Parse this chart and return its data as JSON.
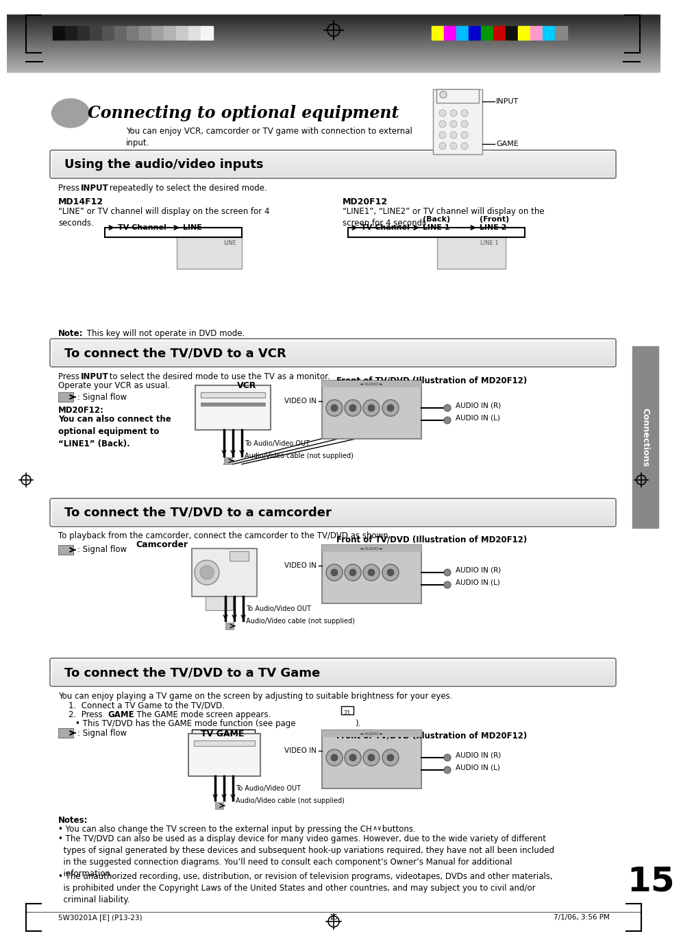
{
  "page_bg": "#ffffff",
  "title_italic": "Connecting to optional equipment",
  "subtitle": "You can enjoy VCR, camcorder or TV game with connection to external\ninput.",
  "section1_title": "Using the audio/video inputs",
  "section1_body1": "Press ",
  "section1_body1b": "INPUT",
  "section1_body1c": " repeatedly to select the desired mode.",
  "md14f12_title": "MD14F12",
  "md14f12_body": "“LINE” or TV channel will display on the screen for 4\nseconds.",
  "md20f12_title": "MD20F12",
  "md20f12_body": "“LINE1”, “LINE2” or TV channel will display on the\nscreen for 4 seconds.",
  "note_text": " This key will not operate in DVD mode.",
  "vcr_section_title": "To connect the TV/DVD to a VCR",
  "vcr_body1a": "Press ",
  "vcr_body1b": "INPUT",
  "vcr_body1c": " to select the desired mode to use the TV as a monitor.",
  "vcr_body2": "Operate your VCR as usual.",
  "vcr_label": "VCR",
  "front_label1": "Front of TV/DVD (Illustration of MD20F12)",
  "signal_flow": ": Signal flow",
  "md20f12_note_title": "MD20F12:",
  "md20f12_note_body": "You can also connect the\noptional equipment to\n“LINE1” (Back).",
  "audio_video_cable": "Audio/Video cable (not supplied)",
  "to_audio_video_out": "To Audio/Video OUT",
  "video_in": "VIDEO IN",
  "audio_in_r": "AUDIO IN (R)",
  "audio_in_l": "AUDIO IN (L)",
  "cam_section_title": "To connect the TV/DVD to a camcorder",
  "cam_body": "To playback from the camcorder, connect the camcorder to the TV/DVD as shown.",
  "cam_label": "Camcorder",
  "front_label2": "Front of TV/DVD (Illustration of MD20F12)",
  "tvgame_section_title": "To connect the TV/DVD to a TV Game",
  "tvgame_body1": "You can enjoy playing a TV game on the screen by adjusting to suitable brightness for your eyes.",
  "tvgame_body2": "1.  Connect a TV Game to the TV/DVD.",
  "tvgame_body3a": "2.  Press ",
  "tvgame_body3b": "GAME",
  "tvgame_body3c": ". The GAME mode screen appears.",
  "tvgame_body4": "  • This TV/DVD has the GAME mode function (see page      ).",
  "tvgame_label": "TV GAME",
  "front_label3": "Front of TV/DVD (Illustration of MD20F12)",
  "notes_title": "Notes:",
  "notes_body1a": "• You can also change the TV screen to the external input by pressing the CH ",
  "notes_body1b": "       buttons.",
  "notes_body2": "• The TV/DVD can also be used as a display device for many video games. However, due to the wide variety of different\n  types of signal generated by these devices and subsequent hook-up variations required, they have not all been included\n  in the suggested connection diagrams. You’ll need to consult each component’s Owner’s Manual for additional\n  information.",
  "notes_body3": "• The unauthorized recording, use, distribution, or revision of television programs, videotapes, DVDs and other materials,\n  is prohibited under the Copyright Laws of the United States and other countries, and may subject you to civil and/or\n  criminal liability.",
  "page_number": "15",
  "connections_sidebar": "Connections",
  "footer_left": "5W30201A [E] (P13-23)",
  "footer_center": "15",
  "footer_right": "7/1/06, 3:56 PM",
  "tv_channel_label": "TV Channel",
  "line_label": "LINE",
  "line1_label": "LINE 1",
  "line1_sub": "(Back)",
  "line2_label": "LINE 2",
  "line2_sub": "(Front)",
  "input_label": "INPUT",
  "game_label": "GAME"
}
